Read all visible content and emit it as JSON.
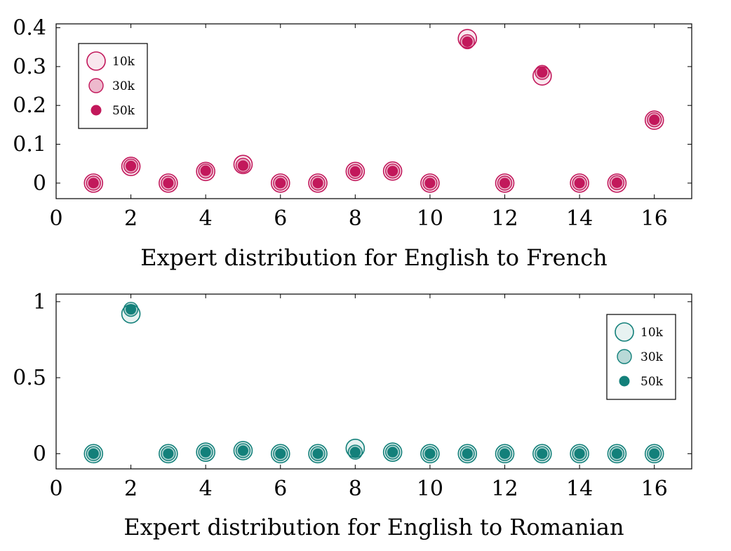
{
  "chart_data": [
    {
      "type": "scatter",
      "xlabel": "Expert distribution for English to French",
      "ylabel": "",
      "xlim": [
        0,
        17
      ],
      "ylim": [
        -0.04,
        0.41
      ],
      "xticks": [
        0,
        2,
        4,
        6,
        8,
        10,
        12,
        14,
        16
      ],
      "yticks": [
        0,
        0.1,
        0.2,
        0.3,
        0.4
      ],
      "ytick_labels": [
        "0",
        "0.1",
        "0.2",
        "0.3",
        "0.4"
      ],
      "grid": false,
      "legend_position": "top-left",
      "color": "#c2185b",
      "series": [
        {
          "name": "10k",
          "marker": "large-light",
          "x": [
            1,
            2,
            3,
            4,
            5,
            6,
            7,
            8,
            9,
            10,
            11,
            12,
            13,
            14,
            15,
            16
          ],
          "y": [
            0,
            0.043,
            0,
            0.03,
            0.048,
            0,
            0,
            0.03,
            0.031,
            0,
            0.372,
            0,
            0.276,
            0,
            0,
            0.162
          ]
        },
        {
          "name": "30k",
          "marker": "medium",
          "x": [
            1,
            2,
            3,
            4,
            5,
            6,
            7,
            8,
            9,
            10,
            11,
            12,
            13,
            14,
            15,
            16
          ],
          "y": [
            0,
            0.044,
            0,
            0.031,
            0.046,
            0,
            0,
            0.03,
            0.031,
            0,
            0.364,
            0,
            0.285,
            0,
            0.001,
            0.163
          ]
        },
        {
          "name": "50k",
          "marker": "small-dark",
          "x": [
            1,
            2,
            3,
            4,
            5,
            6,
            7,
            8,
            9,
            10,
            11,
            12,
            13,
            14,
            15,
            16
          ],
          "y": [
            0,
            0.044,
            0,
            0.032,
            0.045,
            0,
            0,
            0.03,
            0.031,
            0,
            0.364,
            0,
            0.285,
            0,
            0.001,
            0.163
          ]
        }
      ]
    },
    {
      "type": "scatter",
      "xlabel": "Expert distribution for English to Romanian",
      "ylabel": "",
      "xlim": [
        0,
        17
      ],
      "ylim": [
        -0.1,
        1.05
      ],
      "xticks": [
        0,
        2,
        4,
        6,
        8,
        10,
        12,
        14,
        16
      ],
      "yticks": [
        0,
        0.5,
        1
      ],
      "ytick_labels": [
        "0",
        "0.5",
        "1"
      ],
      "grid": false,
      "legend_position": "top-right",
      "color": "#13807a",
      "series": [
        {
          "name": "10k",
          "marker": "large-light",
          "x": [
            1,
            2,
            3,
            4,
            5,
            6,
            7,
            8,
            9,
            10,
            11,
            12,
            13,
            14,
            15,
            16
          ],
          "y": [
            0,
            0.92,
            0,
            0.01,
            0.02,
            0,
            0,
            0.035,
            0.01,
            0,
            0,
            0,
            0,
            0,
            0,
            0
          ]
        },
        {
          "name": "30k",
          "marker": "medium",
          "x": [
            1,
            2,
            3,
            4,
            5,
            6,
            7,
            8,
            9,
            10,
            11,
            12,
            13,
            14,
            15,
            16
          ],
          "y": [
            0,
            0.95,
            0,
            0.01,
            0.02,
            0,
            0,
            0.01,
            0.01,
            0,
            0,
            0,
            0,
            0,
            0,
            0
          ]
        },
        {
          "name": "50k",
          "marker": "small-dark",
          "x": [
            1,
            2,
            3,
            4,
            5,
            6,
            7,
            8,
            9,
            10,
            11,
            12,
            13,
            14,
            15,
            16
          ],
          "y": [
            0,
            0.95,
            0,
            0.01,
            0.02,
            0,
            0,
            0.01,
            0.01,
            0,
            0,
            0,
            0,
            0,
            0,
            0
          ]
        }
      ]
    }
  ]
}
